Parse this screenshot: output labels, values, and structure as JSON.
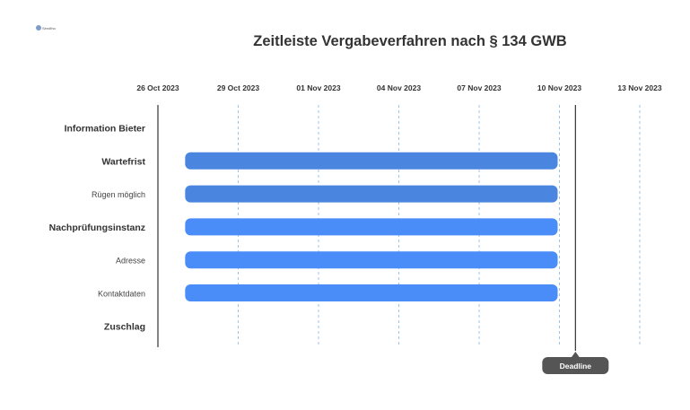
{
  "logo": {
    "text": "Sendtho"
  },
  "chart_data": {
    "type": "gantt",
    "title": "Zeitleiste Vergabeverfahren nach § 134 GWB",
    "x_range": [
      "2023-10-26",
      "2023-11-13"
    ],
    "ticks": [
      {
        "date": "2023-10-26",
        "label": "26 Oct 2023"
      },
      {
        "date": "2023-10-29",
        "label": "29 Oct 2023"
      },
      {
        "date": "2023-11-01",
        "label": "01 Nov 2023"
      },
      {
        "date": "2023-11-04",
        "label": "04 Nov 2023"
      },
      {
        "date": "2023-11-07",
        "label": "07 Nov 2023"
      },
      {
        "date": "2023-11-10",
        "label": "10 Nov 2023"
      },
      {
        "date": "2023-11-13",
        "label": "13 Nov 2023"
      }
    ],
    "rows": [
      {
        "label": "Information Bieter",
        "group": true,
        "start": null,
        "end": null,
        "color": null
      },
      {
        "label": "Wartefrist",
        "group": true,
        "start": "2023-10-27",
        "end": "2023-11-10",
        "color": "#4a86e0"
      },
      {
        "label": "Rügen möglich",
        "group": false,
        "start": "2023-10-27",
        "end": "2023-11-10",
        "color": "#4a86e0"
      },
      {
        "label": "Nachprüfungsinstanz",
        "group": true,
        "start": "2023-10-27",
        "end": "2023-11-10",
        "color": "#4b8df8"
      },
      {
        "label": "Adresse",
        "group": false,
        "start": "2023-10-27",
        "end": "2023-11-10",
        "color": "#4b8df8"
      },
      {
        "label": "Kontaktdaten",
        "group": false,
        "start": "2023-10-27",
        "end": "2023-11-10",
        "color": "#4b8df8"
      },
      {
        "label": "Zuschlag",
        "group": true,
        "start": null,
        "end": null,
        "color": null
      }
    ],
    "milestone": {
      "label": "Deadline",
      "date": "2023-11-11",
      "color": "#555555"
    },
    "grid": true,
    "colors": {
      "gridline": "#9cc3ee",
      "axis": "#333333",
      "text": "#333333"
    }
  }
}
